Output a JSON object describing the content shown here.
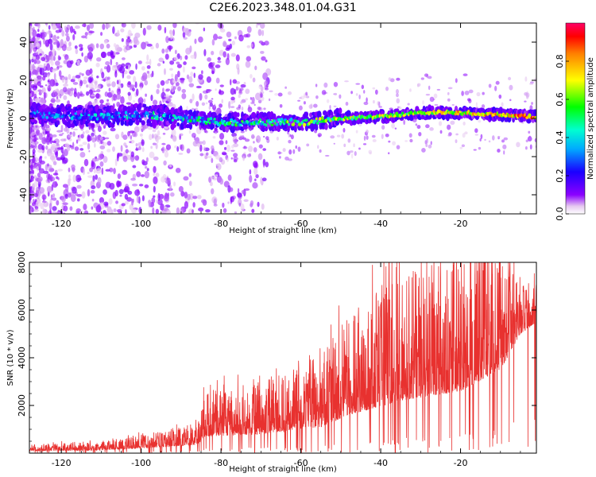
{
  "title": "C2E6.2023.348.01.04.G31",
  "chart_data": [
    {
      "type": "heatmap",
      "xlabel": "Height of straight line (km)",
      "ylabel": "Frequency (Hz)",
      "xlim": [
        -128,
        -1
      ],
      "ylim": [
        -50,
        50
      ],
      "xticks": [
        -120,
        -100,
        -80,
        -60,
        -40,
        -20
      ],
      "yticks": [
        -40,
        -20,
        0,
        20,
        40
      ],
      "colorbar": {
        "label": "Normalized spectral amplitude",
        "range": [
          0,
          1
        ],
        "ticks": [
          0.0,
          0.2,
          0.4,
          0.6,
          0.8
        ],
        "colormap": "rainbow (purple to red)"
      },
      "ridge": {
        "description_points": [
          {
            "x": -125,
            "y": 2
          },
          {
            "x": -110,
            "y": 1
          },
          {
            "x": -100,
            "y": 2
          },
          {
            "x": -90,
            "y": 0
          },
          {
            "x": -80,
            "y": -2
          },
          {
            "x": -70,
            "y": -2
          },
          {
            "x": -60,
            "y": -2
          },
          {
            "x": -50,
            "y": 0
          },
          {
            "x": -40,
            "y": 1
          },
          {
            "x": -30,
            "y": 3
          },
          {
            "x": -20,
            "y": 3
          },
          {
            "x": -10,
            "y": 2
          },
          {
            "x": -3,
            "y": 1
          }
        ]
      }
    },
    {
      "type": "line",
      "xlabel": "Height of straight line (km)",
      "ylabel": "SNR (10 * v/v)",
      "xlim": [
        -128,
        -1
      ],
      "ylim": [
        0,
        8000
      ],
      "xticks": [
        -120,
        -100,
        -80,
        -60,
        -40,
        -20
      ],
      "yticks": [
        2000,
        4000,
        6000,
        8000
      ],
      "color": "#e8312f",
      "envelope": [
        {
          "x": -128,
          "base": 100,
          "amp": 200
        },
        {
          "x": -110,
          "base": 120,
          "amp": 250
        },
        {
          "x": -95,
          "base": 250,
          "amp": 450
        },
        {
          "x": -86,
          "base": 350,
          "amp": 600
        },
        {
          "x": -84,
          "base": 700,
          "amp": 1300
        },
        {
          "x": -70,
          "base": 800,
          "amp": 1600
        },
        {
          "x": -55,
          "base": 1100,
          "amp": 2200
        },
        {
          "x": -48,
          "base": 1600,
          "amp": 3000
        },
        {
          "x": -35,
          "base": 2200,
          "amp": 3800
        },
        {
          "x": -20,
          "base": 2600,
          "amp": 4200
        },
        {
          "x": -10,
          "base": 3500,
          "amp": 3500
        },
        {
          "x": -5,
          "base": 5000,
          "amp": 1500
        },
        {
          "x": -1,
          "base": 5500,
          "amp": 1200
        }
      ]
    }
  ]
}
